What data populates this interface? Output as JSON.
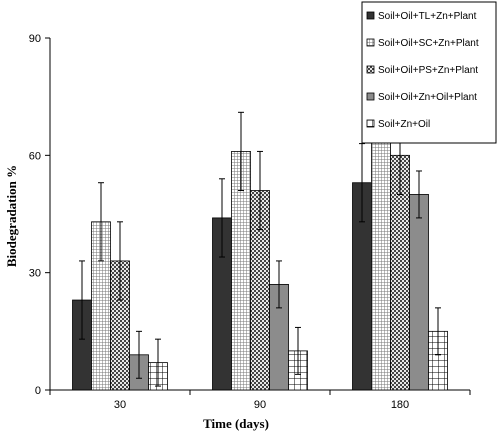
{
  "chart_data": {
    "type": "bar",
    "xlabel": "Time (days)",
    "ylabel": "Biodegradation %",
    "categories": [
      "30",
      "90",
      "180"
    ],
    "ylim": [
      0,
      90
    ],
    "yticks": [
      0,
      30,
      60,
      90
    ],
    "grid": false,
    "legend_position": "top-right",
    "series": [
      {
        "name": "Soil+Oil+TL+Zn+Plant",
        "pattern": "solid-dark",
        "color": "#333333",
        "values": [
          23,
          44,
          53
        ],
        "errors": [
          10,
          10,
          10
        ]
      },
      {
        "name": "Soil+Oil+SC+Zn+Plant",
        "pattern": "fine-grid",
        "color": "#9a9a9a",
        "values": [
          43,
          61,
          85
        ],
        "errors": [
          10,
          10,
          5
        ]
      },
      {
        "name": "Soil+Oil+PS+Zn+Plant",
        "pattern": "checker",
        "color": "#555555",
        "values": [
          33,
          51,
          60
        ],
        "errors": [
          10,
          10,
          10
        ]
      },
      {
        "name": "Soil+Oil+Zn+Oil+Plant",
        "pattern": "solid-gray",
        "color": "#8c8c8c",
        "values": [
          9,
          27,
          50
        ],
        "errors": [
          6,
          6,
          6
        ]
      },
      {
        "name": "Soil+Zn+Oil",
        "pattern": "large-grid",
        "color": "#000000",
        "values": [
          7,
          10,
          15
        ],
        "errors": [
          6,
          6,
          6
        ]
      }
    ]
  }
}
